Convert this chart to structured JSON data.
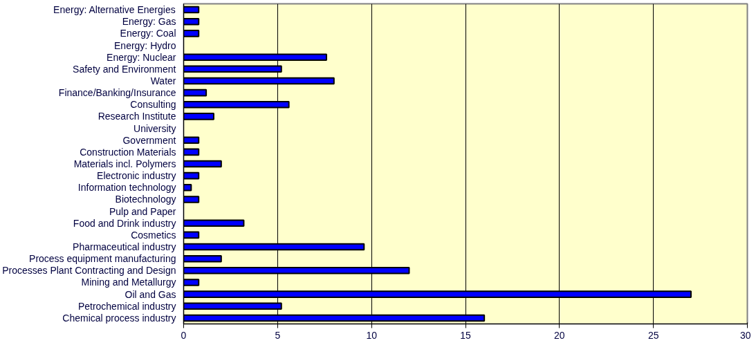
{
  "chart_data": {
    "type": "bar",
    "orientation": "horizontal",
    "categories": [
      "Energy: Alternative Energies",
      "Energy: Gas",
      "Energy: Coal",
      "Energy: Hydro",
      "Energy: Nuclear",
      "Safety and Environment",
      "Water",
      "Finance/Banking/Insurance",
      "Consulting",
      "Research Institute",
      "University",
      "Government",
      "Construction Materials",
      "Materials incl. Polymers",
      "Electronic industry",
      "Information technology",
      "Biotechnology",
      "Pulp and Paper",
      "Food and Drink industry",
      "Cosmetics",
      "Pharmaceutical industry",
      "Process equipment manufacturing",
      "Processes Plant Contracting and Design",
      "Mining and Metallurgy",
      "Oil and Gas",
      "Petrochemical industry",
      "Chemical process industry"
    ],
    "values": [
      0.8,
      0.8,
      0.8,
      0,
      7.6,
      5.2,
      8,
      1.2,
      5.6,
      1.6,
      0,
      0.8,
      0.8,
      2,
      0.8,
      0.4,
      0.8,
      0,
      3.2,
      0.8,
      9.6,
      2,
      12,
      0.8,
      27,
      5.2,
      16
    ],
    "color": "#0000ff",
    "xlim": [
      0,
      30
    ],
    "xticks": [
      0,
      5,
      10,
      15,
      20,
      25,
      30
    ],
    "grid": "x"
  }
}
